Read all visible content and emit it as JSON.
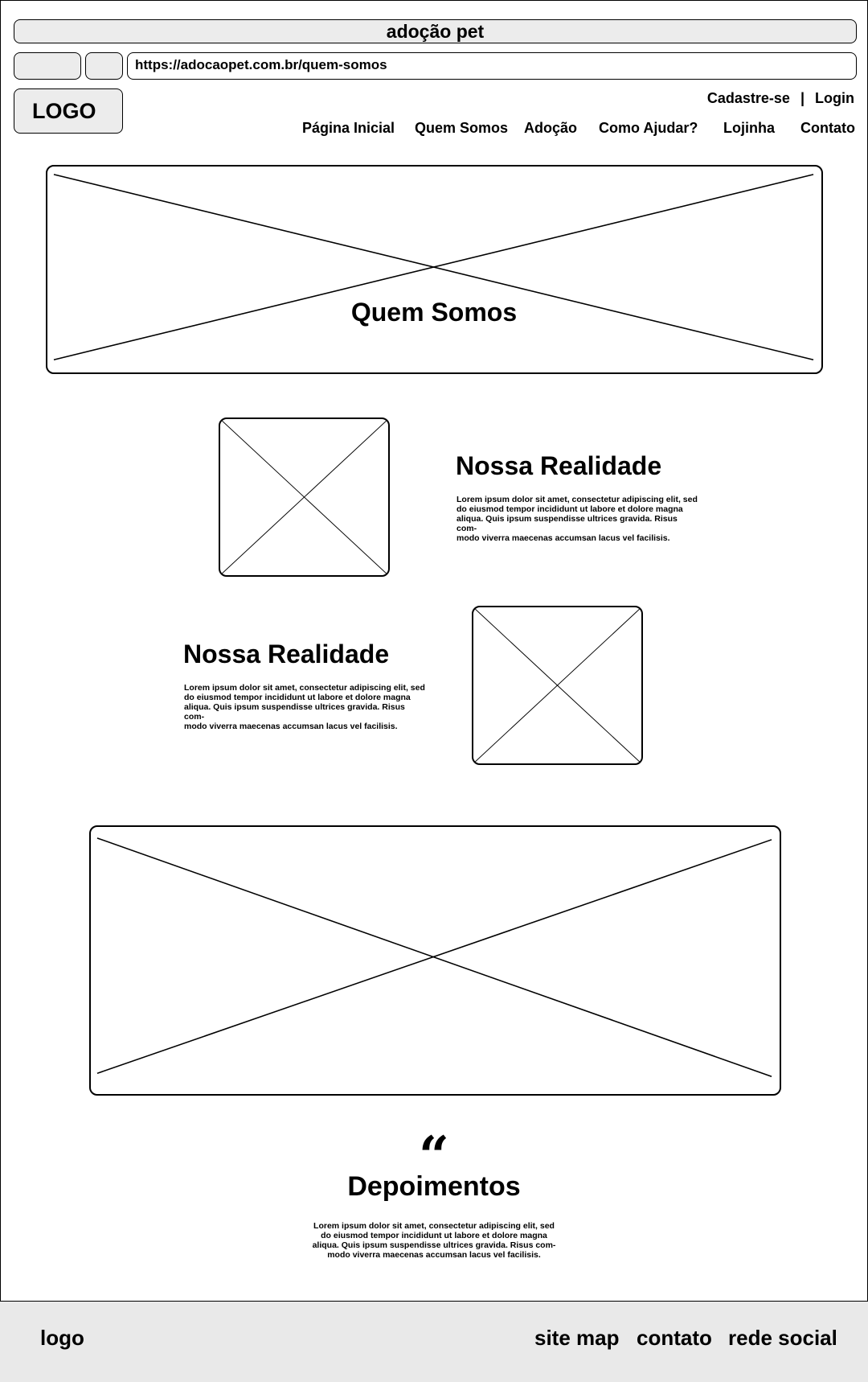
{
  "window": {
    "title": "adoção pet"
  },
  "address_bar": {
    "url": "https://adocaopet.com.br/quem-somos"
  },
  "header": {
    "logo_text": "LOGO",
    "signup_label": "Cadastre-se",
    "separator": "|",
    "login_label": "Login",
    "nav": [
      "Página Inicial",
      "Quem Somos",
      "Adoção",
      "Como Ajudar?",
      "Lojinha",
      "Contato"
    ]
  },
  "hero": {
    "title": "Quem Somos"
  },
  "sections": [
    {
      "title": "Nossa Realidade",
      "body": "Lorem ipsum dolor sit amet, consectetur adipiscing elit, sed do eiusmod tempor incididunt ut labore et dolore magna aliqua. Quis ipsum suspendisse ultrices gravida. Risus commodo viverra maecenas accumsan lacus vel facilisis.",
      "lines": [
        "Lorem ipsum dolor sit amet, consectetur adipiscing elit, sed",
        "do eiusmod tempor incididunt ut labore et dolore magna",
        "aliqua. Quis ipsum suspendisse ultrices gravida. Risus com-",
        "modo viverra maecenas accumsan lacus vel facilisis."
      ]
    },
    {
      "title": "Nossa Realidade",
      "lines": [
        "Lorem ipsum dolor sit amet, consectetur adipiscing elit, sed",
        "do eiusmod tempor incididunt ut labore et dolore magna",
        "aliqua. Quis ipsum suspendisse ultrices gravida. Risus com-",
        "modo viverra maecenas accumsan lacus vel facilisis."
      ]
    }
  ],
  "testimonials": {
    "quote_mark": "“",
    "title": "Depoimentos",
    "lines": [
      "Lorem ipsum dolor sit amet, consectetur adipiscing elit, sed",
      "do eiusmod tempor incididunt ut labore et dolore magna",
      "aliqua. Quis ipsum suspendisse ultrices gravida. Risus com-",
      "modo viverra maecenas accumsan lacus vel facilisis."
    ]
  },
  "footer": {
    "logo_text": "logo",
    "links": [
      "site map",
      "contato",
      "rede social"
    ]
  },
  "colors": {
    "chrome_gray": "#ececec",
    "footer_gray": "#e9e9e9",
    "ink": "#000000"
  }
}
